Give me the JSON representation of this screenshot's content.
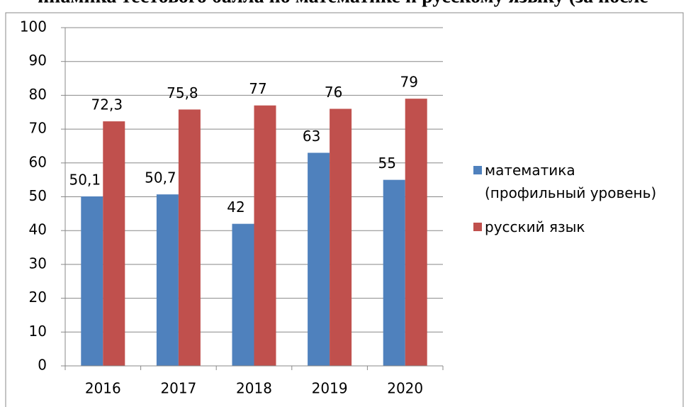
{
  "chart_data": {
    "type": "bar",
    "title": "инамика тестового балла по математике и русскому языку (за после",
    "categories": [
      "2016",
      "2017",
      "2018",
      "2019",
      "2020"
    ],
    "series": [
      {
        "name": "математика (профильный уровень)",
        "color": "#4f81bd",
        "values": [
          50.1,
          50.7,
          42,
          63,
          55
        ],
        "value_labels": [
          "50,1",
          "50,7",
          "42",
          "63",
          "55"
        ]
      },
      {
        "name": "русский язык",
        "color": "#c0504d",
        "values": [
          72.3,
          75.8,
          77,
          76,
          79
        ],
        "value_labels": [
          "72,3",
          "75,8",
          "77",
          "76",
          "79"
        ]
      }
    ],
    "ylim": [
      0,
      100
    ],
    "yticks": [
      0,
      10,
      20,
      30,
      40,
      50,
      60,
      70,
      80,
      90,
      100
    ],
    "grid": true,
    "legend": "right"
  }
}
